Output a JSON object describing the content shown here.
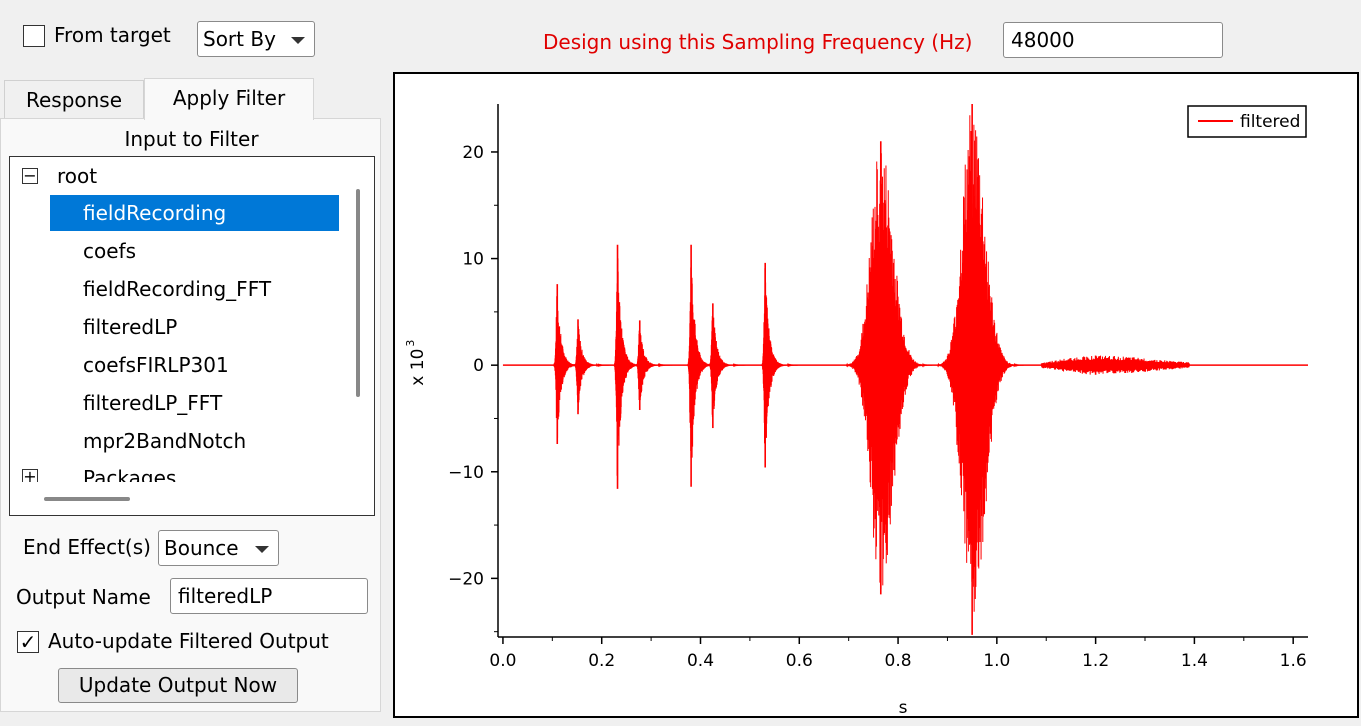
{
  "controls": {
    "from_target_label": "From target",
    "from_target_checked": false,
    "sort_by_label": "Sort By",
    "design_label": "Design using this Sampling Frequency (Hz)",
    "sampling_frequency": "48000"
  },
  "tabs": [
    {
      "label": "Response",
      "active": false
    },
    {
      "label": "Apply Filter",
      "active": true
    }
  ],
  "apply_filter": {
    "input_title": "Input to Filter",
    "tree": {
      "root_label": "root",
      "root_expander": "−",
      "items": [
        "fieldRecording",
        "coefs",
        "fieldRecording_FFT",
        "filteredLP",
        "coefsFIRLP301",
        "filteredLP_FFT",
        "mpr2BandNotch"
      ],
      "selected_index": 0,
      "packages_label": "Packages",
      "packages_expander": "+"
    },
    "end_effects_label": "End Effect(s)",
    "end_effects_value": "Bounce",
    "output_name_label": "Output Name",
    "output_name_value": "filteredLP",
    "auto_update_label": "Auto-update Filtered Output",
    "auto_update_checked": true,
    "auto_update_mark": "✓",
    "update_button_label": "Update Output Now"
  },
  "chart_data": {
    "type": "line",
    "xlabel": "s",
    "ylabel": "x 10",
    "ylabel_exponent": "3",
    "xlim": [
      -0.01,
      1.63
    ],
    "ylim": [
      -25.5,
      24.5
    ],
    "xticks": [
      0.0,
      0.2,
      0.4,
      0.6,
      0.8,
      1.0,
      1.2,
      1.4,
      1.6
    ],
    "xtick_labels": [
      "0.0",
      "0.2",
      "0.4",
      "0.6",
      "0.8",
      "1.0",
      "1.2",
      "1.4",
      "1.6"
    ],
    "yticks": [
      20,
      10,
      0,
      -10,
      -20
    ],
    "ytick_labels": [
      "20",
      "10",
      "0",
      "−10",
      "−20"
    ],
    "legend_position": "top-right",
    "series": [
      {
        "name": "filtered",
        "color": "#ff0000",
        "x_range": [
          0.0,
          1.63
        ],
        "envelope": [
          {
            "t": 0.11,
            "max": 7.6,
            "min": -7.4
          },
          {
            "t": 0.152,
            "max": 4.3,
            "min": -4.6
          },
          {
            "t": 0.232,
            "max": 11.3,
            "min": -11.6
          },
          {
            "t": 0.277,
            "max": 4.2,
            "min": -4.2
          },
          {
            "t": 0.381,
            "max": 11.3,
            "min": -11.4
          },
          {
            "t": 0.425,
            "max": 5.8,
            "min": -5.9
          },
          {
            "t": 0.531,
            "max": 9.6,
            "min": -9.6
          },
          {
            "t": 0.765,
            "max": 21.0,
            "min": -21.5
          },
          {
            "t": 0.95,
            "max": 24.5,
            "min": -25.3
          },
          {
            "t": 1.2,
            "max": 0.9,
            "min": -0.9
          }
        ]
      }
    ]
  }
}
